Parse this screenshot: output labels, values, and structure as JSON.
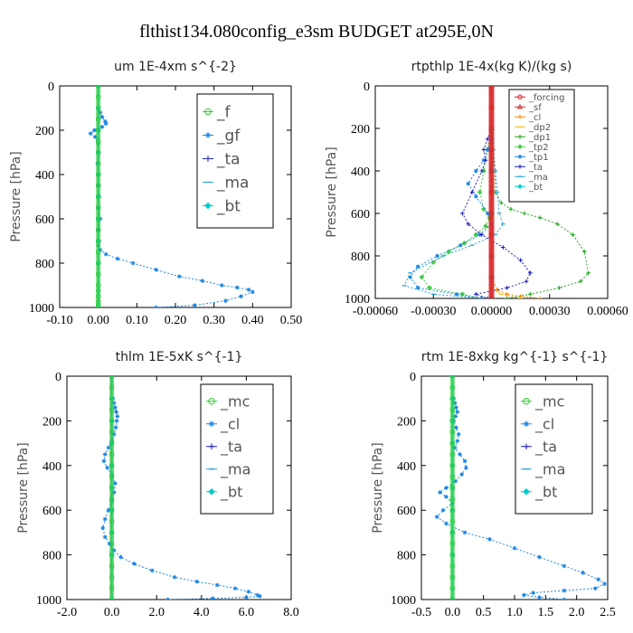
{
  "figure": {
    "title": "flthist134.080config_e3sm  BUDGET at295E,0N"
  },
  "chart_data": [
    {
      "type": "line",
      "title": "um  1E-4xm s^{-2}",
      "ylabel": "Pressure [hPa]",
      "xlim": [
        -0.1,
        0.5
      ],
      "ylim": [
        1000,
        0
      ],
      "xticks": [
        "-0.10",
        "0.00",
        "0.10",
        "0.20",
        "0.30",
        "0.40",
        "0.50"
      ],
      "yticks": [
        "0",
        "200",
        "400",
        "600",
        "800",
        "1000"
      ],
      "grid": false,
      "legend_position": "top-right",
      "series": [
        {
          "name": "_f",
          "color": "#33cc33",
          "marker": "circle",
          "x": [
            0,
            0,
            0,
            0,
            0,
            0,
            0,
            0,
            0,
            0,
            0,
            0,
            0,
            0,
            0,
            0,
            0,
            0,
            0,
            0,
            0,
            0,
            0,
            0
          ],
          "y": [
            0,
            50,
            100,
            150,
            200,
            250,
            300,
            350,
            400,
            450,
            500,
            550,
            600,
            650,
            700,
            750,
            800,
            850,
            900,
            925,
            950,
            975,
            990,
            1000
          ]
        },
        {
          "name": "_gf",
          "color": "#1e88e5",
          "marker": "star",
          "x": [
            0,
            0.005,
            0.01,
            0.018,
            0.02,
            0.01,
            -0.01,
            -0.02,
            -0.008,
            0,
            0,
            -0.002,
            0,
            0,
            0.002,
            0,
            0.005,
            0,
            0.002,
            0,
            0.005,
            0.02,
            0.05,
            0.09,
            0.15,
            0.21,
            0.27,
            0.32,
            0.36,
            0.39,
            0.4,
            0.37,
            0.33,
            0.25,
            0.15
          ],
          "y": [
            100,
            120,
            140,
            160,
            170,
            185,
            200,
            215,
            230,
            260,
            300,
            350,
            400,
            450,
            500,
            550,
            600,
            650,
            700,
            720,
            740,
            760,
            780,
            800,
            830,
            860,
            880,
            900,
            910,
            920,
            930,
            950,
            970,
            990,
            1000
          ]
        },
        {
          "name": "_ta",
          "color": "#2020c0",
          "marker": "plus",
          "x": [
            0,
            0,
            0,
            0,
            0,
            0,
            0,
            0,
            0,
            0
          ],
          "y": [
            0,
            100,
            200,
            300,
            400,
            500,
            600,
            700,
            800,
            1000
          ]
        },
        {
          "name": "_ma",
          "color": "#2aa3d8",
          "marker": "dash",
          "x": [
            0,
            0,
            0,
            0,
            0,
            0,
            0,
            0,
            0,
            0
          ],
          "y": [
            0,
            100,
            200,
            300,
            400,
            500,
            600,
            700,
            800,
            1000
          ]
        },
        {
          "name": "_bt",
          "color": "#00cccc",
          "marker": "diamond",
          "x": [
            0,
            0,
            0,
            0,
            0,
            0,
            0,
            0,
            0,
            0
          ],
          "y": [
            0,
            100,
            200,
            300,
            400,
            500,
            600,
            700,
            800,
            1000
          ]
        }
      ]
    },
    {
      "type": "line",
      "title": "rtpthlp  1E-4x(kg K)/(kg s)",
      "ylabel": "Pressure [hPa]",
      "xlim": [
        -0.0006,
        0.0006
      ],
      "ylim": [
        1000,
        0
      ],
      "xticks": [
        "-0.00060",
        "-0.00030",
        "0.00000",
        "0.00030",
        "0.00060"
      ],
      "yticks": [
        "0",
        "200",
        "400",
        "600",
        "800",
        "1000"
      ],
      "grid": false,
      "legend_position": "top-right",
      "series": [
        {
          "name": "_forcing",
          "color": "#e02020",
          "marker": "circle",
          "x": [
            0,
            0,
            0,
            0,
            0,
            0,
            0,
            0,
            0,
            0,
            0
          ],
          "y": [
            0,
            100,
            200,
            300,
            400,
            500,
            600,
            700,
            800,
            900,
            1000
          ]
        },
        {
          "name": "_sf",
          "color": "#c03030",
          "marker": "triangle",
          "x": [
            0,
            0,
            0,
            0,
            0,
            0,
            0,
            0,
            0,
            0,
            0
          ],
          "y": [
            0,
            100,
            200,
            300,
            400,
            500,
            600,
            700,
            800,
            900,
            1000
          ]
        },
        {
          "name": "_cl",
          "color": "#ff8c00",
          "marker": "plus",
          "x": [
            0,
            0,
            0,
            3e-05,
            8e-05,
            0.00015,
            0.00025
          ],
          "y": [
            0,
            500,
            900,
            960,
            980,
            990,
            1000
          ]
        },
        {
          "name": "_dp2",
          "color": "#f0c020",
          "marker": "dash",
          "x": [
            0,
            0,
            0,
            0,
            5e-05,
            0.00015
          ],
          "y": [
            0,
            400,
            800,
            950,
            980,
            1000
          ]
        },
        {
          "name": "_dp1",
          "color": "#22aa22",
          "marker": "plus",
          "x": [
            0,
            1e-05,
            2e-05,
            2e-05,
            5e-05,
            0.0001,
            0.00017,
            0.00025,
            0.00034,
            0.00042,
            0.00048,
            0.0005,
            0.00046,
            0.00035,
            0.0002,
            8e-05
          ],
          "y": [
            200,
            300,
            400,
            500,
            550,
            580,
            600,
            620,
            650,
            700,
            780,
            880,
            920,
            950,
            980,
            1000
          ]
        },
        {
          "name": "_tp2",
          "color": "#44cc44",
          "marker": "diamond",
          "x": [
            0,
            -2e-05,
            -4e-05,
            -6e-05,
            -4e-05,
            -1e-05,
            -3e-05,
            -8e-05,
            -0.00014,
            -0.00022,
            -0.0003,
            -0.00036,
            -0.00032,
            -0.00015,
            -5e-05
          ],
          "y": [
            200,
            300,
            400,
            500,
            580,
            620,
            660,
            700,
            740,
            780,
            830,
            900,
            950,
            980,
            1000
          ]
        },
        {
          "name": "_tp1",
          "color": "#1e88e5",
          "marker": "star",
          "x": [
            0,
            -2e-05,
            -4e-05,
            -8e-05,
            -0.00012,
            -8e-05,
            -2e-05,
            0,
            -6e-05,
            -0.00016,
            -0.00028,
            -0.00038,
            -0.00042,
            -0.00038,
            -0.00018,
            -5e-05
          ],
          "y": [
            250,
            300,
            350,
            400,
            460,
            520,
            600,
            650,
            700,
            750,
            800,
            850,
            900,
            950,
            980,
            1000
          ]
        },
        {
          "name": "_ta",
          "color": "#2020c0",
          "marker": "plus",
          "x": [
            0,
            -2e-05,
            -4e-05,
            -3e-05,
            -5e-05,
            -0.0001,
            -0.00015,
            -0.00012,
            -5e-05,
            6e-05,
            0.00015,
            0.0002,
            0.00018,
            8e-05,
            -8e-05,
            -2e-05
          ],
          "y": [
            200,
            250,
            300,
            350,
            400,
            500,
            600,
            650,
            700,
            760,
            820,
            880,
            920,
            950,
            980,
            1000
          ]
        },
        {
          "name": "_ma",
          "color": "#2aa3d8",
          "marker": "dash",
          "x": [
            0,
            1e-05,
            2e-05,
            3e-05,
            4e-05,
            6e-05,
            2e-05,
            -0.0001,
            -0.00025,
            -0.00042,
            -0.00045,
            -0.0003,
            -5e-05
          ],
          "y": [
            200,
            300,
            400,
            500,
            600,
            650,
            700,
            750,
            800,
            880,
            940,
            980,
            1000
          ]
        },
        {
          "name": "_bt",
          "color": "#00cccc",
          "marker": "diamond",
          "x": [
            0,
            0,
            0,
            0,
            0,
            0,
            0
          ],
          "y": [
            0,
            200,
            400,
            600,
            800,
            900,
            1000
          ]
        }
      ]
    },
    {
      "type": "line",
      "title": "thlm  1E-5xK s^{-1}",
      "ylabel": "Pressure [hPa]",
      "xlim": [
        -2.0,
        8.0
      ],
      "ylim": [
        1000,
        0
      ],
      "xticks": [
        "-2.0",
        "0.0",
        "2.0",
        "4.0",
        "6.0",
        "8.0"
      ],
      "yticks": [
        "0",
        "200",
        "400",
        "600",
        "800",
        "1000"
      ],
      "grid": false,
      "legend_position": "top-right",
      "series": [
        {
          "name": "_mc",
          "color": "#33cc33",
          "marker": "circle",
          "x": [
            0,
            0,
            0,
            0,
            0,
            0,
            0,
            0,
            0,
            0,
            0,
            0,
            0,
            0,
            0,
            0,
            0,
            0,
            0,
            0,
            0
          ],
          "y": [
            0,
            50,
            100,
            150,
            200,
            250,
            300,
            350,
            400,
            450,
            500,
            550,
            600,
            650,
            700,
            750,
            800,
            850,
            900,
            950,
            1000
          ]
        },
        {
          "name": "_cl",
          "color": "#1e88e5",
          "marker": "star",
          "x": [
            0.05,
            0.1,
            0.15,
            0.2,
            0.25,
            0.22,
            0.18,
            0.1,
            0,
            -0.15,
            -0.3,
            -0.35,
            -0.2,
            0,
            0.15,
            0.1,
            0,
            -0.15,
            -0.3,
            -0.4,
            -0.3,
            -0.1,
            0.1,
            0.4,
            1.0,
            1.8,
            2.8,
            3.8,
            4.7,
            5.5,
            6.1,
            6.5,
            6.6,
            6.0,
            4.5,
            2.5
          ],
          "y": [
            100,
            120,
            140,
            160,
            180,
            200,
            230,
            260,
            290,
            320,
            350,
            380,
            410,
            440,
            480,
            520,
            560,
            600,
            640,
            680,
            720,
            750,
            780,
            810,
            840,
            870,
            900,
            920,
            935,
            950,
            965,
            980,
            985,
            990,
            995,
            1000
          ]
        },
        {
          "name": "_ta",
          "color": "#2020c0",
          "marker": "plus",
          "x": [
            0,
            0,
            0,
            0,
            0,
            0,
            0,
            0,
            0,
            0
          ],
          "y": [
            0,
            100,
            200,
            300,
            400,
            500,
            600,
            700,
            800,
            1000
          ]
        },
        {
          "name": "_ma",
          "color": "#2aa3d8",
          "marker": "dash",
          "x": [
            0,
            0,
            0,
            0,
            0,
            0,
            0,
            0,
            0,
            0
          ],
          "y": [
            0,
            100,
            200,
            300,
            400,
            500,
            600,
            700,
            800,
            1000
          ]
        },
        {
          "name": "_bt",
          "color": "#00cccc",
          "marker": "diamond",
          "x": [
            0,
            0,
            0,
            0,
            0,
            0,
            0,
            0,
            0,
            0
          ],
          "y": [
            0,
            100,
            200,
            300,
            400,
            500,
            600,
            700,
            800,
            1000
          ]
        }
      ]
    },
    {
      "type": "line",
      "title": "rtm  1E-8xkg kg^{-1} s^{-1}",
      "ylabel": "Pressure [hPa]",
      "xlim": [
        -0.5,
        2.5
      ],
      "ylim": [
        1000,
        0
      ],
      "xticks": [
        "-0.5",
        "0.0",
        "0.5",
        "1.0",
        "1.5",
        "2.0",
        "2.5"
      ],
      "yticks": [
        "0",
        "200",
        "400",
        "600",
        "800",
        "1000"
      ],
      "grid": false,
      "legend_position": "top-right",
      "series": [
        {
          "name": "_mc",
          "color": "#33cc33",
          "marker": "circle",
          "x": [
            0,
            0,
            0,
            0,
            0,
            0,
            0,
            0,
            0,
            0,
            0,
            0,
            0,
            0,
            0,
            0,
            0,
            0,
            0,
            0,
            0
          ],
          "y": [
            0,
            50,
            100,
            150,
            200,
            250,
            300,
            350,
            400,
            450,
            500,
            550,
            600,
            650,
            700,
            750,
            800,
            850,
            900,
            950,
            1000
          ]
        },
        {
          "name": "_cl",
          "color": "#1e88e5",
          "marker": "star",
          "x": [
            0.02,
            0.04,
            0.06,
            0.08,
            0.05,
            0.02,
            0.06,
            0.1,
            0.08,
            0.04,
            0.12,
            0.2,
            0.22,
            0.15,
            0.05,
            -0.1,
            -0.2,
            -0.1,
            0,
            -0.15,
            -0.25,
            -0.1,
            0.2,
            0.6,
            1.0,
            1.4,
            1.8,
            2.1,
            2.35,
            2.45,
            2.3,
            1.8,
            1.3,
            1.15,
            1.4,
            1.8
          ],
          "y": [
            100,
            120,
            140,
            160,
            180,
            200,
            230,
            260,
            290,
            320,
            350,
            380,
            410,
            440,
            470,
            500,
            520,
            540,
            570,
            600,
            630,
            660,
            700,
            730,
            770,
            810,
            850,
            880,
            910,
            930,
            950,
            960,
            970,
            980,
            990,
            1000
          ]
        },
        {
          "name": "_ta",
          "color": "#2020c0",
          "marker": "plus",
          "x": [
            0,
            0,
            0,
            0,
            0,
            0,
            0,
            0,
            0,
            0
          ],
          "y": [
            0,
            100,
            200,
            300,
            400,
            500,
            600,
            700,
            800,
            1000
          ]
        },
        {
          "name": "_ma",
          "color": "#2aa3d8",
          "marker": "dash",
          "x": [
            0,
            0,
            0,
            0,
            0,
            0,
            0,
            0,
            0,
            0
          ],
          "y": [
            0,
            100,
            200,
            300,
            400,
            500,
            600,
            700,
            800,
            1000
          ]
        },
        {
          "name": "_bt",
          "color": "#00cccc",
          "marker": "diamond",
          "x": [
            0,
            0,
            0,
            0,
            0,
            0,
            0,
            0,
            0,
            0
          ],
          "y": [
            0,
            100,
            200,
            300,
            400,
            500,
            600,
            700,
            800,
            1000
          ]
        }
      ]
    }
  ]
}
